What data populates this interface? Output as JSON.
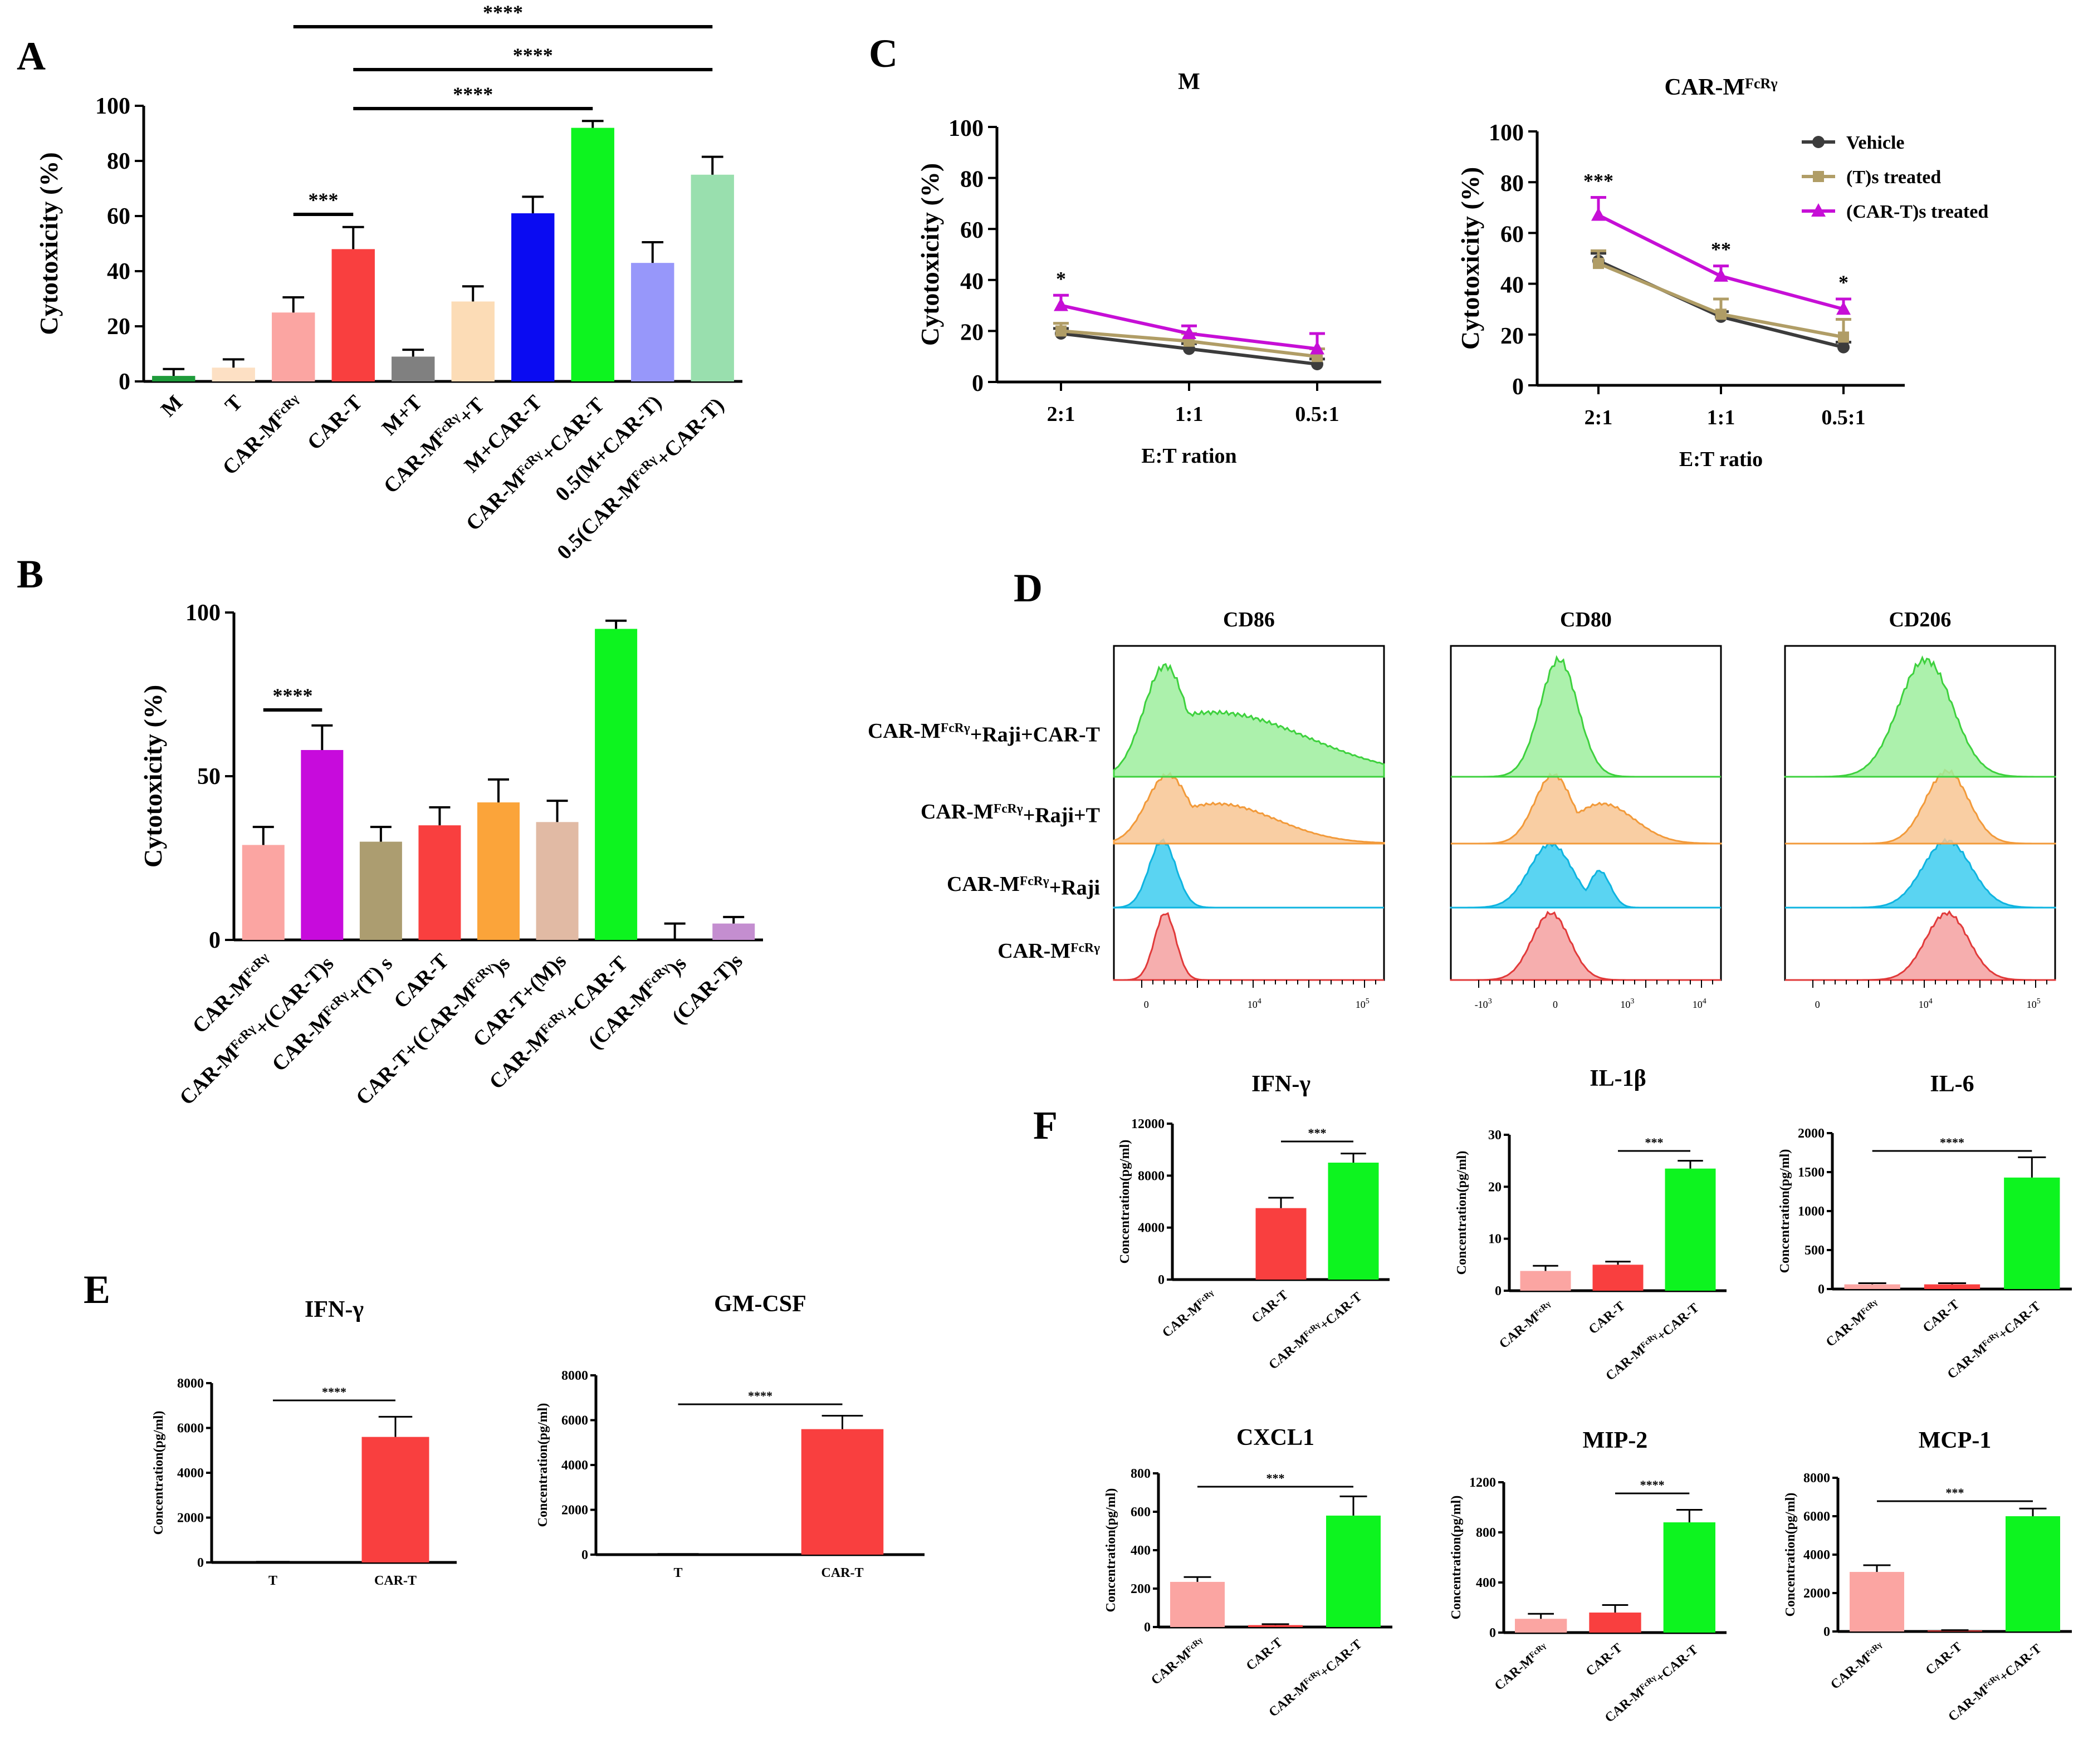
{
  "panel_labels": {
    "A": "A",
    "B": "B",
    "C": "C",
    "D": "D",
    "E": "E",
    "F": "F"
  },
  "chart_data": [
    {
      "id": "A",
      "type": "bar",
      "title": "",
      "ylabel": "Cytotoxicity (%)",
      "ylim": [
        0,
        100
      ],
      "yticks": [
        "0",
        "20",
        "40",
        "60",
        "80",
        "100"
      ],
      "categories": [
        "M",
        "T",
        "CAR-M^FcRγ",
        "CAR-T",
        "M+T",
        "CAR-M^FcRγ+T",
        "M+CAR-T",
        "CAR-M^FcRγ+CAR-T",
        "0.5(M+CAR-T)",
        "0.5(CAR-M^FcRγ+CAR-T)"
      ],
      "values": [
        2,
        5,
        25,
        48,
        9,
        29,
        61,
        92,
        43,
        75
      ],
      "errors": [
        2.5,
        3,
        5.5,
        8,
        2.5,
        5.5,
        6,
        2.5,
        7.5,
        6.5
      ],
      "colors": [
        "#1e9b3a",
        "#fde0c4",
        "#fba5a2",
        "#f93f3f",
        "#808080",
        "#fcdcb6",
        "#0a0bf2",
        "#0df41f",
        "#9797fa",
        "#99dfae"
      ],
      "significance": [
        {
          "from": 2,
          "to": 3,
          "label": "***"
        },
        {
          "from": 3,
          "to": 7,
          "label": "****"
        },
        {
          "from": 3,
          "to": 9,
          "label": "****"
        },
        {
          "from": 2,
          "to": 9,
          "label": "****"
        }
      ]
    },
    {
      "id": "B",
      "type": "bar",
      "title": "",
      "ylabel": "Cytotoxicity (%)",
      "ylim": [
        0,
        100
      ],
      "yticks": [
        "0",
        "50",
        "100"
      ],
      "categories": [
        "CAR-M^FcRγ",
        "CAR-M^FcRγ+(CAR-T)s",
        "CAR-M^FcRγ+(T) s",
        "CAR-T",
        "CAR-T+(CAR-M^FcRγ)s",
        "CAR-T+(M)s",
        "CAR-M^FcRγ+CAR-T",
        "(CAR-M^FcRγ)s",
        "(CAR-T)s"
      ],
      "values": [
        29,
        58,
        30,
        35,
        42,
        36,
        95,
        0,
        5
      ],
      "errors": [
        5.5,
        7.5,
        4.5,
        5.5,
        7,
        6.5,
        2.5,
        5,
        2
      ],
      "colors": [
        "#fba5a2",
        "#c70bdc",
        "#ac9d70",
        "#f93f3f",
        "#fba43a",
        "#e1baa4",
        "#0df41f",
        "#aaaaaa",
        "#c48ed0"
      ],
      "significance": [
        {
          "from": 0,
          "to": 1,
          "label": "****"
        }
      ]
    },
    {
      "id": "C1",
      "type": "line",
      "title": "M",
      "xlabel": "E:T ration",
      "ylabel": "Cytotoxicity (%)",
      "ylim": [
        0,
        100
      ],
      "yticks": [
        "0",
        "20",
        "40",
        "60",
        "80",
        "100"
      ],
      "categories": [
        "2:1",
        "1:1",
        "0.5:1"
      ],
      "series": [
        {
          "name": "Vehicle",
          "values": [
            19,
            13,
            7
          ],
          "errors": [
            2,
            2,
            2
          ],
          "color": "#3c3c3c",
          "marker": "circle"
        },
        {
          "name": "(T)s treated",
          "values": [
            20,
            16,
            10
          ],
          "errors": [
            3,
            3,
            3
          ],
          "color": "#b09d66",
          "marker": "square"
        },
        {
          "name": "(CAR-T)s treated",
          "values": [
            30,
            19,
            13
          ],
          "errors": [
            4,
            3,
            6
          ],
          "color": "#c60fd6",
          "marker": "triangle"
        }
      ],
      "annotations": [
        {
          "category": 0,
          "label": "*"
        }
      ]
    },
    {
      "id": "C2",
      "type": "line",
      "title": "CAR-M^FcRγ",
      "xlabel": "E:T ratio",
      "ylabel": "Cytotoxicity (%)",
      "ylim": [
        0,
        100
      ],
      "yticks": [
        "0",
        "20",
        "40",
        "60",
        "80",
        "100"
      ],
      "categories": [
        "2:1",
        "1:1",
        "0.5:1"
      ],
      "series": [
        {
          "name": "Vehicle",
          "values": [
            49,
            27,
            15
          ],
          "errors": [
            3,
            2,
            2
          ],
          "color": "#3c3c3c",
          "marker": "circle"
        },
        {
          "name": "(T)s treated",
          "values": [
            48,
            28,
            19
          ],
          "errors": [
            5,
            6,
            7
          ],
          "color": "#b09d66",
          "marker": "square"
        },
        {
          "name": "(CAR-T)s treated",
          "values": [
            67,
            43,
            30
          ],
          "errors": [
            7,
            4,
            4
          ],
          "color": "#c60fd6",
          "marker": "triangle"
        }
      ],
      "annotations": [
        {
          "category": 0,
          "label": "***"
        },
        {
          "category": 1,
          "label": "**"
        },
        {
          "category": 2,
          "label": "*"
        }
      ]
    },
    {
      "id": "E1",
      "type": "bar",
      "title": "IFN-γ",
      "ylabel": "Concentration(pg/ml)",
      "ylim": [
        0,
        8000
      ],
      "yticks": [
        "0",
        "2000",
        "4000",
        "6000",
        "8000"
      ],
      "categories": [
        "T",
        "CAR-T"
      ],
      "values": [
        0,
        5600
      ],
      "errors": [
        30,
        900
      ],
      "colors": [
        "#aaaaaa",
        "#f93f3f"
      ],
      "significance": [
        {
          "from": 0,
          "to": 1,
          "label": "****"
        }
      ]
    },
    {
      "id": "E2",
      "type": "bar",
      "title": "GM-CSF",
      "ylabel": "Concentration(pg/ml)",
      "ylim": [
        0,
        8000
      ],
      "yticks": [
        "0",
        "2000",
        "4000",
        "6000",
        "8000"
      ],
      "categories": [
        "T",
        "CAR-T"
      ],
      "values": [
        0,
        5600
      ],
      "errors": [
        30,
        600
      ],
      "colors": [
        "#aaaaaa",
        "#f93f3f"
      ],
      "significance": [
        {
          "from": 0,
          "to": 1,
          "label": "****"
        }
      ]
    },
    {
      "id": "F1",
      "type": "bar",
      "title": "IFN-γ",
      "ylabel": "Concentration(pg/ml)",
      "ylim": [
        0,
        12000
      ],
      "yticks": [
        "0",
        "4000",
        "8000",
        "12000"
      ],
      "categories": [
        "CAR-M^FcRγ",
        "CAR-T",
        "CAR-M^FcRγ+CAR-T"
      ],
      "values": [
        0,
        5500,
        9000
      ],
      "errors": [
        0,
        800,
        700
      ],
      "colors": [
        "#fba5a2",
        "#f93f3f",
        "#0df41f"
      ],
      "significance": [
        {
          "from": 1,
          "to": 2,
          "label": "***"
        }
      ]
    },
    {
      "id": "F2",
      "type": "bar",
      "title": "IL-1β",
      "ylabel": "Concentration(pg/ml)",
      "ylim": [
        0,
        30
      ],
      "yticks": [
        "0",
        "10",
        "20",
        "30"
      ],
      "categories": [
        "CAR-M^FcRγ",
        "CAR-T",
        "CAR-M^FcRγ+CAR-T"
      ],
      "values": [
        3.8,
        5,
        23.5
      ],
      "errors": [
        1,
        0.6,
        1.5
      ],
      "colors": [
        "#fba5a2",
        "#f93f3f",
        "#0df41f"
      ],
      "significance": [
        {
          "from": 1,
          "to": 2,
          "label": "***"
        }
      ]
    },
    {
      "id": "F3",
      "type": "bar",
      "title": "IL-6",
      "ylabel": "Concentration(pg/ml)",
      "ylim": [
        0,
        2000
      ],
      "yticks": [
        "0",
        "500",
        "1000",
        "1500",
        "2000"
      ],
      "categories": [
        "CAR-M^FcRγ",
        "CAR-T",
        "CAR-M^FcRγ+CAR-T"
      ],
      "values": [
        60,
        60,
        1430
      ],
      "errors": [
        15,
        15,
        260
      ],
      "colors": [
        "#fba5a2",
        "#f93f3f",
        "#0df41f"
      ],
      "significance": [
        {
          "from": 0,
          "to": 2,
          "label": "****"
        }
      ]
    },
    {
      "id": "F4",
      "type": "bar",
      "title": "CXCL1",
      "ylabel": "Concentration(pg/ml)",
      "ylim": [
        0,
        800
      ],
      "yticks": [
        "0",
        "200",
        "400",
        "600",
        "800"
      ],
      "categories": [
        "CAR-M^FcRγ",
        "CAR-T",
        "CAR-M^FcRγ+CAR-T"
      ],
      "values": [
        235,
        10,
        580
      ],
      "errors": [
        25,
        5,
        100
      ],
      "colors": [
        "#fba5a2",
        "#f93f3f",
        "#0df41f"
      ],
      "significance": [
        {
          "from": 0,
          "to": 2,
          "label": "***"
        }
      ]
    },
    {
      "id": "F5",
      "type": "bar",
      "title": "MIP-2",
      "ylabel": "Concentration(pg/ml)",
      "ylim": [
        0,
        1200
      ],
      "yticks": [
        "0",
        "400",
        "800",
        "1200"
      ],
      "categories": [
        "CAR-M^FcRγ",
        "CAR-T",
        "CAR-M^FcRγ+CAR-T"
      ],
      "values": [
        110,
        160,
        880
      ],
      "errors": [
        40,
        60,
        100
      ],
      "colors": [
        "#fba5a2",
        "#f93f3f",
        "#0df41f"
      ],
      "significance": [
        {
          "from": 1,
          "to": 2,
          "label": "****"
        }
      ]
    },
    {
      "id": "F6",
      "type": "bar",
      "title": "MCP-1",
      "ylabel": "Concentration(pg/ml)",
      "ylim": [
        0,
        8000
      ],
      "yticks": [
        "0",
        "2000",
        "4000",
        "6000",
        "8000"
      ],
      "categories": [
        "CAR-M^FcRγ",
        "CAR-T",
        "CAR-M^FcRγ+CAR-T"
      ],
      "values": [
        3100,
        50,
        6000
      ],
      "errors": [
        350,
        20,
        400
      ],
      "colors": [
        "#fba5a2",
        "#f93f3f",
        "#0df41f"
      ],
      "significance": [
        {
          "from": 0,
          "to": 2,
          "label": "***"
        }
      ]
    }
  ],
  "flow": {
    "markers": [
      "CD86",
      "CD80",
      "CD206"
    ],
    "rows": [
      "CAR-M^FcRγ+Raji+CAR-T",
      "CAR-M^FcRγ+Raji+T",
      "CAR-M^FcRγ+Raji",
      "CAR-M^FcRγ"
    ],
    "row_colors": [
      "#9dee9d",
      "#f8c593",
      "#3dcdf0",
      "#f4a0a0"
    ],
    "row_line_colors": [
      "#3ed13e",
      "#f29a3a",
      "#0fb4e0",
      "#e13a3a"
    ],
    "axis_ticks": {
      "CD86": [
        "0",
        "10^4",
        "10^5"
      ],
      "CD80": [
        "-10^3",
        "0",
        "10^3",
        "10^4"
      ],
      "CD206": [
        "0",
        "10^4",
        "10^5"
      ]
    }
  }
}
